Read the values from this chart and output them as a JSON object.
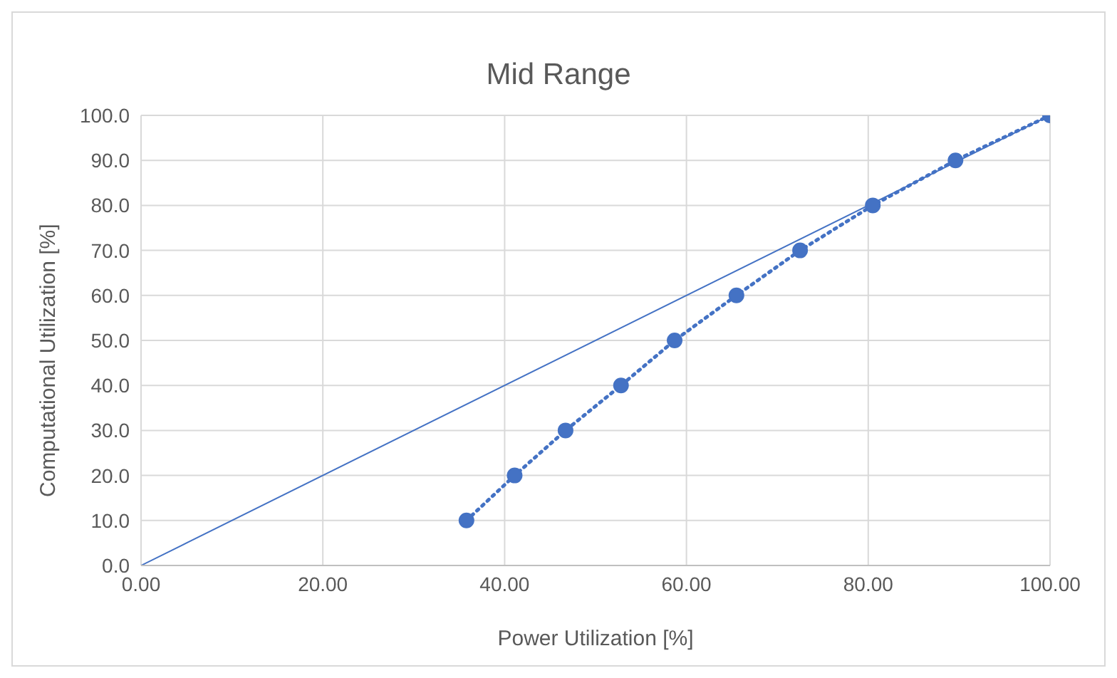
{
  "chart_data": {
    "type": "line",
    "title": "Mid Range",
    "xlabel": "Power Utilization [%]",
    "ylabel": "Computational Utilization [%]",
    "xlim": [
      0,
      100
    ],
    "ylim": [
      0,
      100
    ],
    "xticks": [
      {
        "value": 0,
        "label": "0.00"
      },
      {
        "value": 20,
        "label": "20.00"
      },
      {
        "value": 40,
        "label": "40.00"
      },
      {
        "value": 60,
        "label": "60.00"
      },
      {
        "value": 80,
        "label": "80.00"
      },
      {
        "value": 100,
        "label": "100.00"
      }
    ],
    "yticks": [
      {
        "value": 0,
        "label": "0.0"
      },
      {
        "value": 10,
        "label": "10.0"
      },
      {
        "value": 20,
        "label": "20.0"
      },
      {
        "value": 30,
        "label": "30.0"
      },
      {
        "value": 40,
        "label": "40.0"
      },
      {
        "value": 50,
        "label": "50.0"
      },
      {
        "value": 60,
        "label": "60.0"
      },
      {
        "value": 70,
        "label": "70.0"
      },
      {
        "value": 80,
        "label": "80.0"
      },
      {
        "value": 90,
        "label": "90.0"
      },
      {
        "value": 100,
        "label": "100.0"
      }
    ],
    "grid": true,
    "series": [
      {
        "color": "#4472c4",
        "marker": "circle",
        "line_style": "dotted",
        "x": [
          35.8,
          41.1,
          46.7,
          52.8,
          58.7,
          65.5,
          72.5,
          80.5,
          89.6,
          100
        ],
        "values": [
          10,
          20,
          30,
          40,
          50,
          60,
          70,
          80,
          90,
          100
        ]
      },
      {
        "color": "#4472c4",
        "marker": "none",
        "line_style": "solid",
        "x": [
          0,
          100
        ],
        "values": [
          0,
          100
        ]
      }
    ]
  }
}
